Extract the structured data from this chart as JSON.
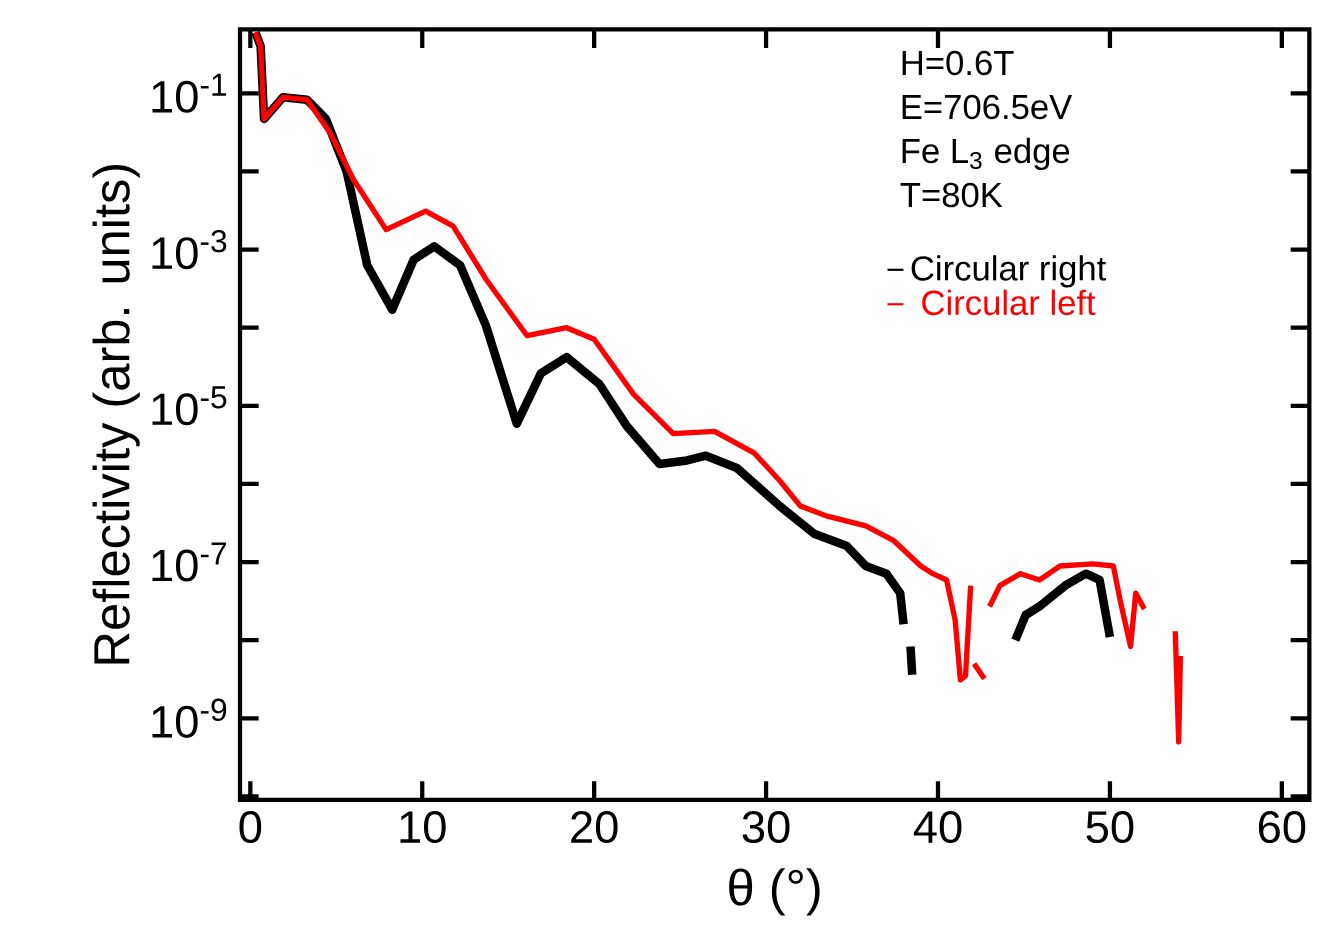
{
  "chart_data": {
    "type": "line",
    "xlabel": "θ (°)",
    "ylabel": "Reflectivity (arb. units)",
    "log": "y",
    "legend": "top right",
    "marker": "none",
    "line_style": "solid",
    "annotations": [
      "H=0.6T",
      "E=706.5eV",
      "Fe L$_{3}$ edge",
      "T=80K"
    ],
    "xlim": [
      -0.6,
      61.6
    ],
    "xticks": [
      0,
      10,
      20,
      30,
      40,
      50,
      60
    ],
    "ylim": [
      9e-11,
      0.66
    ],
    "yticks": [
      {
        "value": 1e-10,
        "label": null
      },
      {
        "value": 1e-09,
        "label": "10$^{-9}$"
      },
      {
        "value": 1e-08,
        "label": null
      },
      {
        "value": 1e-07,
        "label": "10$^{-7}$"
      },
      {
        "value": 1e-06,
        "label": null
      },
      {
        "value": 1e-05,
        "label": "10$^{-5}$"
      },
      {
        "value": 0.0001,
        "label": null
      },
      {
        "value": 0.001,
        "label": "10$^{-3}$"
      },
      {
        "value": 0.01,
        "label": null
      },
      {
        "value": 0.1,
        "label": "10$^{-1}$"
      }
    ],
    "series": [
      {
        "name": "Circular right",
        "color": "#000000",
        "x": [
          0.3,
          0.6,
          0.8,
          1.9,
          3.3,
          4.4,
          5.6,
          6.8,
          8.25,
          9.5,
          10.7,
          12.2,
          13.7,
          15.5,
          16.9,
          18.4,
          20.3,
          21.9,
          23.8,
          25.4,
          26.5,
          28.3,
          30.8,
          32.8,
          34.7,
          35.8,
          37,
          37.8,
          38,
          38.2,
          38.4,
          38.5,
          40,
          44.5,
          45.1,
          45.9,
          47.4,
          48.6,
          49.4,
          50
        ],
        "values": [
          0.6,
          0.4,
          0.047,
          0.089,
          0.083,
          0.047,
          0.01,
          0.00063,
          0.00017,
          0.00074,
          0.0011,
          0.00063,
          0.000107,
          5.9e-06,
          2.6e-05,
          4.2e-05,
          1.9e-05,
          5.5e-06,
          1.8e-06,
          2e-06,
          2.3e-06,
          1.6e-06,
          5.2e-07,
          2.3e-07,
          1.6e-07,
          8.9e-08,
          7.1e-08,
          4e-08,
          1.6e-08,
          null,
          8.3e-09,
          3.6e-09,
          null,
          1e-08,
          2.1e-08,
          2.7e-08,
          5e-08,
          7.1e-08,
          5.9e-08,
          1.1e-08
        ]
      },
      {
        "name": "Circular left",
        "color": "#ff0000",
        "x": [
          0.3,
          0.6,
          0.8,
          1.9,
          3.3,
          4.65,
          6.0,
          7.9,
          10.2,
          11.8,
          13.7,
          16.1,
          18.4,
          20,
          22.3,
          24.6,
          27,
          29.3,
          30.8,
          32,
          33.5,
          35.8,
          37.4,
          39,
          39.7,
          40.5,
          41,
          41.3,
          41.6,
          41.9,
          42.0,
          42.1,
          42.7,
          42.8,
          43,
          43.6,
          44.8,
          45.9,
          47.1,
          49,
          50.2,
          50.6,
          51.2,
          51.5,
          52,
          53,
          53.8,
          54,
          54.1
        ],
        "values": [
          0.6,
          0.4,
          0.047,
          0.089,
          0.083,
          0.031,
          0.0079,
          0.0018,
          0.0031,
          0.002,
          0.00042,
          7.9e-05,
          0.0001,
          7.1e-05,
          1.4e-05,
          4.4e-06,
          4.7e-06,
          2.5e-06,
          1.1e-06,
          5.2e-07,
          3.9e-07,
          2.9e-07,
          1.9e-07,
          8.9e-08,
          7.1e-08,
          5.9e-08,
          1.8e-08,
          3.1e-09,
          3.5e-09,
          5e-08,
          null,
          5e-09,
          3.2e-09,
          null,
          2.7e-08,
          5e-08,
          7.1e-08,
          5.9e-08,
          8.9e-08,
          9.5e-08,
          8.9e-08,
          3.2e-08,
          8.3e-09,
          4e-08,
          2.5e-08,
          null,
          1.3e-08,
          5e-10,
          6.3e-09
        ]
      }
    ]
  }
}
